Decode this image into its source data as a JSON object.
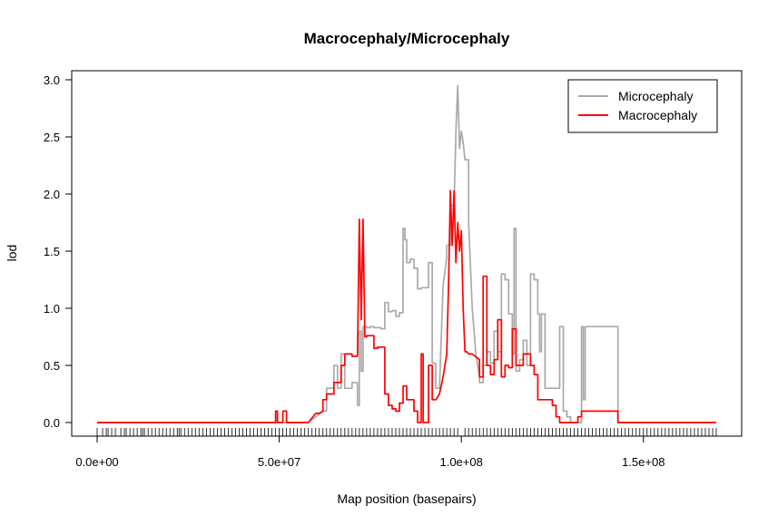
{
  "chart_data": {
    "type": "line",
    "title": "Macrocephaly/Microcephaly",
    "xlabel": "Map position (basepairs)",
    "ylabel": "lod",
    "xlim": [
      0,
      170000000
    ],
    "ylim": [
      0,
      3.0
    ],
    "x_ticks": [
      0,
      50000000,
      100000000,
      150000000
    ],
    "x_tick_labels": [
      "0.0e+00",
      "5.0e+07",
      "1.0e+08",
      "1.5e+08"
    ],
    "y_ticks": [
      0,
      0.5,
      1.0,
      1.5,
      2.0,
      2.5,
      3.0
    ],
    "y_tick_labels": [
      "0.0",
      "0.5",
      "1.0",
      "1.5",
      "2.0",
      "2.5",
      "3.0"
    ],
    "legend_position": "top-right",
    "grid": false,
    "rug": true,
    "series": [
      {
        "name": "Microcephaly",
        "color": "#aaaaaa",
        "x": [
          0,
          58000000,
          60000000,
          62000000,
          63000000,
          63000000,
          65000000,
          65000000,
          66000000,
          66000000,
          67000000,
          67000000,
          68000000,
          68000000,
          70000000,
          70000000,
          71500000,
          71500000,
          72000000,
          72000000,
          72500000,
          72500000,
          73000000,
          73000000,
          74000000,
          74000000,
          75000000,
          75000000,
          76000000,
          76000000,
          78000000,
          78000000,
          79000000,
          79000000,
          80000000,
          80000000,
          81000000,
          81000000,
          82000000,
          82000000,
          83000000,
          83000000,
          84000000,
          84000000,
          84500000,
          84500000,
          85000000,
          85000000,
          86000000,
          86000000,
          87000000,
          87000000,
          88000000,
          88000000,
          89000000,
          89000000,
          91000000,
          91000000,
          92000000,
          92000000,
          93000000,
          93000000,
          94000000,
          95000000,
          96000000,
          96000000,
          97000000,
          97000000,
          98000000,
          98500000,
          99000000,
          99500000,
          100000000,
          100500000,
          101000000,
          101000000,
          102000000,
          102000000,
          103000000,
          104000000,
          105000000,
          105000000,
          106000000,
          106000000,
          107000000,
          107000000,
          108000000,
          108000000,
          109000000,
          109000000,
          110000000,
          110000000,
          111000000,
          111000000,
          112000000,
          112000000,
          113000000,
          113000000,
          114000000,
          114000000,
          114500000,
          114500000,
          115000000,
          115000000,
          116000000,
          116000000,
          117000000,
          117000000,
          118000000,
          118000000,
          119000000,
          119000000,
          120000000,
          120000000,
          121000000,
          121000000,
          121500000,
          121500000,
          122000000,
          122000000,
          123000000,
          123000000,
          124000000,
          124000000,
          127000000,
          127000000,
          128000000,
          128000000,
          129000000,
          129000000,
          130000000,
          130000000,
          133000000,
          133000000,
          133500000,
          133500000,
          134000000,
          134000000,
          143000000,
          143000000,
          170000000
        ],
        "y": [
          0,
          0,
          0.05,
          0.1,
          0.1,
          0.3,
          0.3,
          0.5,
          0.5,
          0.3,
          0.3,
          0.6,
          0.6,
          0.3,
          0.3,
          0.35,
          0.35,
          0.15,
          0.15,
          0.8,
          0.8,
          0.45,
          0.45,
          0.84,
          0.84,
          0.83,
          0.83,
          0.84,
          0.84,
          0.83,
          0.83,
          0.82,
          0.82,
          1.05,
          1.05,
          0.97,
          0.97,
          0.98,
          0.98,
          0.93,
          0.93,
          0.96,
          0.96,
          1.7,
          1.7,
          1.6,
          1.6,
          1.4,
          1.4,
          1.43,
          1.43,
          1.35,
          1.35,
          1.17,
          1.17,
          1.18,
          1.18,
          1.4,
          1.4,
          0.52,
          0.52,
          0.3,
          0.3,
          1.2,
          1.45,
          1.55,
          1.55,
          1.9,
          1.9,
          2.55,
          2.95,
          2.4,
          2.55,
          2.45,
          2.3,
          2.3,
          2.3,
          1.75,
          1.0,
          0.6,
          0.4,
          0.35,
          0.35,
          0.5,
          0.5,
          0.62,
          0.62,
          0.52,
          0.52,
          0.8,
          0.8,
          0.62,
          0.62,
          1.3,
          1.3,
          1.25,
          1.25,
          0.95,
          0.95,
          0.6,
          0.6,
          1.7,
          1.7,
          0.45,
          0.45,
          0.55,
          0.55,
          0.72,
          0.72,
          0.5,
          0.5,
          1.3,
          1.3,
          1.25,
          1.25,
          0.95,
          0.95,
          0.62,
          0.62,
          0.95,
          0.95,
          0.3,
          0.3,
          0.3,
          0.3,
          0.84,
          0.84,
          0.1,
          0.1,
          0.05,
          0.05,
          0.0,
          0.0,
          0.84,
          0.84,
          0.2,
          0.2,
          0.84,
          0.84,
          0.0,
          0.0
        ]
      },
      {
        "name": "Macrocephaly",
        "color": "#ff0000",
        "x": [
          0,
          49000000,
          49000000,
          49500000,
          49500000,
          51000000,
          51000000,
          52000000,
          52000000,
          58000000,
          60000000,
          61000000,
          62000000,
          62000000,
          63000000,
          63000000,
          65000000,
          65000000,
          67000000,
          67000000,
          68000000,
          68000000,
          70000000,
          70000000,
          71500000,
          72000000,
          72500000,
          73000000,
          73500000,
          74000000,
          74000000,
          76000000,
          76000000,
          77000000,
          77000000,
          79000000,
          79000000,
          80000000,
          80000000,
          81000000,
          81000000,
          82000000,
          82000000,
          83000000,
          83000000,
          84000000,
          84000000,
          85000000,
          85000000,
          87000000,
          87000000,
          88000000,
          88000000,
          89000000,
          89000000,
          89500000,
          89500000,
          91000000,
          91000000,
          92000000,
          92000000,
          93000000,
          94000000,
          95000000,
          96000000,
          96500000,
          97000000,
          97500000,
          98000000,
          98500000,
          99000000,
          99500000,
          100000000,
          100500000,
          101000000,
          101500000,
          102000000,
          103000000,
          105000000,
          105000000,
          106000000,
          106000000,
          107000000,
          107000000,
          108000000,
          108000000,
          109000000,
          109000000,
          110000000,
          110000000,
          111000000,
          111000000,
          112000000,
          112000000,
          113000000,
          113000000,
          114000000,
          114000000,
          115000000,
          115000000,
          116000000,
          116000000,
          117000000,
          117000000,
          118000000,
          118000000,
          119000000,
          119000000,
          120000000,
          120000000,
          121000000,
          121000000,
          124000000,
          124000000,
          125000000,
          125000000,
          126000000,
          126000000,
          127000000,
          127000000,
          128000000,
          128000000,
          129000000,
          129000000,
          132000000,
          132000000,
          133000000,
          133000000,
          143000000,
          143000000,
          170000000
        ],
        "y": [
          0,
          0,
          0.1,
          0.1,
          0,
          0,
          0.1,
          0.1,
          0,
          0,
          0.08,
          0.08,
          0.1,
          0.2,
          0.2,
          0.25,
          0.25,
          0.35,
          0.35,
          0.5,
          0.5,
          0.6,
          0.6,
          0.58,
          0.58,
          1.78,
          0.9,
          1.78,
          0.75,
          0.75,
          0.76,
          0.76,
          0.65,
          0.65,
          0.66,
          0.66,
          0.25,
          0.25,
          0.15,
          0.15,
          0.12,
          0.12,
          0.1,
          0.1,
          0.17,
          0.17,
          0.32,
          0.32,
          0.2,
          0.2,
          0.1,
          0.1,
          0.0,
          0.0,
          0.6,
          0.6,
          0.0,
          0.0,
          0.5,
          0.5,
          0.2,
          0.2,
          0.25,
          0.4,
          0.6,
          1.2,
          2.03,
          1.55,
          2.03,
          1.4,
          1.75,
          1.5,
          1.68,
          1.0,
          0.62,
          0.62,
          0.6,
          0.6,
          0.55,
          0.4,
          0.4,
          1.28,
          1.28,
          0.5,
          0.5,
          0.42,
          0.42,
          0.55,
          0.55,
          0.9,
          0.9,
          0.4,
          0.4,
          0.5,
          0.5,
          0.48,
          0.48,
          0.82,
          0.82,
          0.5,
          0.5,
          0.5,
          0.5,
          0.6,
          0.6,
          0.6,
          0.6,
          0.5,
          0.5,
          0.42,
          0.42,
          0.2,
          0.2,
          0.2,
          0.2,
          0.15,
          0.15,
          0.05,
          0.05,
          0.0,
          0.0,
          0.0,
          0.0,
          0.0,
          0.0,
          0.05,
          0.05,
          0.1,
          0.1,
          0.0,
          0.0
        ]
      }
    ],
    "rug_x": [
      0,
      1500000,
      2500000,
      3000000,
      4000000,
      5000000,
      6500000,
      7500000,
      8000000,
      9000000,
      10000000,
      11000000,
      12000000,
      12500000,
      13000000,
      14000000,
      15000000,
      16000000,
      17000000,
      18000000,
      19000000,
      20000000,
      21000000,
      22000000,
      22500000,
      23000000,
      24000000,
      25000000,
      26000000,
      27000000,
      28000000,
      29000000,
      30000000,
      31000000,
      32000000,
      33000000,
      34000000,
      35000000,
      36000000,
      37000000,
      38000000,
      39000000,
      40000000,
      41000000,
      42000000,
      43000000,
      44000000,
      45000000,
      46000000,
      47000000,
      48000000,
      49000000,
      50000000,
      51000000,
      52000000,
      53000000,
      54000000,
      55000000,
      56000000,
      57000000,
      58000000,
      59000000,
      60000000,
      61000000,
      62000000,
      63000000,
      64000000,
      65000000,
      66000000,
      67000000,
      68000000,
      69000000,
      70000000,
      71000000,
      72000000,
      73000000,
      74000000,
      75000000,
      76000000,
      77000000,
      78000000,
      79000000,
      80000000,
      81000000,
      82000000,
      83000000,
      84000000,
      85000000,
      86000000,
      87000000,
      88000000,
      89000000,
      90000000,
      91000000,
      92000000,
      93000000,
      94000000,
      95000000,
      96000000,
      97000000,
      98000000,
      99000000,
      101000000,
      102000000,
      103000000,
      104000000,
      105000000,
      106000000,
      107000000,
      108000000,
      109000000,
      110000000,
      111000000,
      112000000,
      113000000,
      114000000,
      115000000,
      116000000,
      117000000,
      118000000,
      119000000,
      120000000,
      121000000,
      122000000,
      123000000,
      124000000,
      125000000,
      126000000,
      127000000,
      128000000,
      129000000,
      130000000,
      131000000,
      132000000,
      133000000,
      134000000,
      135000000,
      136000000,
      137000000,
      138000000,
      139000000,
      140000000,
      141000000,
      142000000,
      143000000,
      144000000,
      145000000,
      146000000,
      147000000,
      148000000,
      149000000,
      150000000,
      151000000,
      152000000,
      153000000,
      154000000,
      155000000,
      156000000,
      157000000,
      158000000,
      159000000,
      160000000,
      161000000,
      162000000,
      163000000,
      164000000,
      165000000,
      166000000,
      167000000,
      168000000,
      169000000,
      170000000
    ]
  }
}
